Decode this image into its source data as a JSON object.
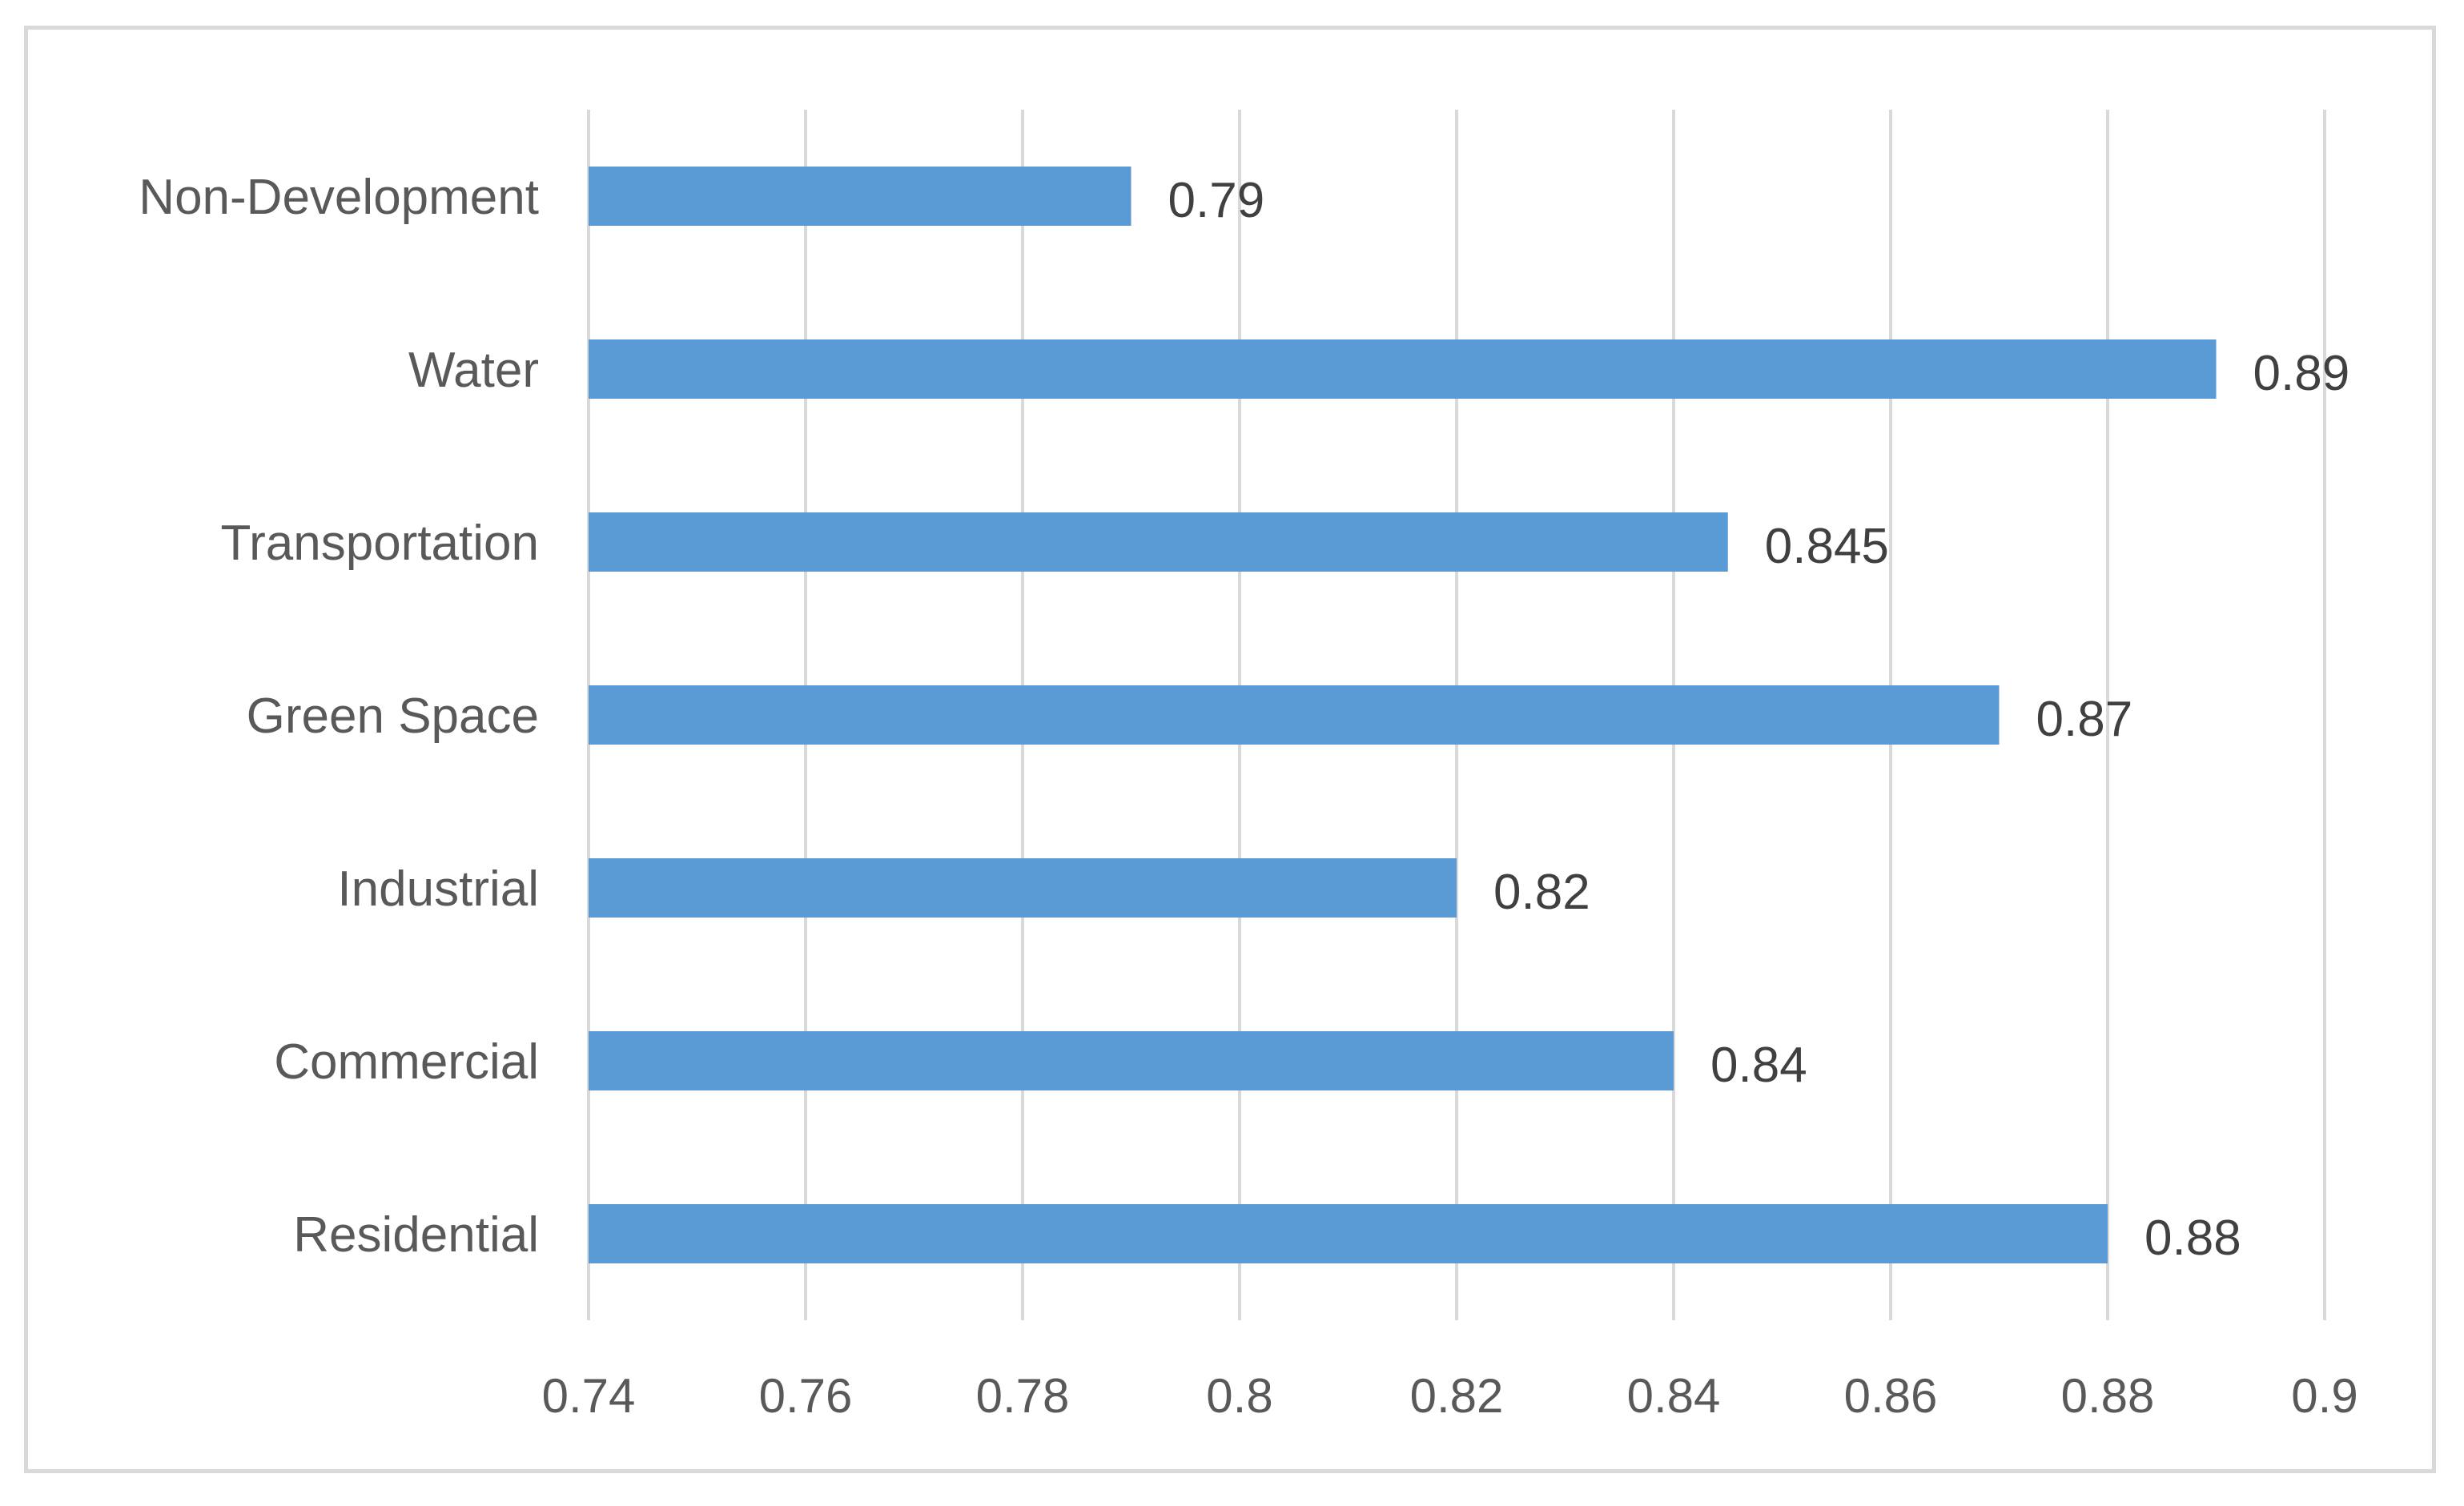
{
  "chart_data": {
    "type": "bar",
    "orientation": "horizontal",
    "categories": [
      "Non-Development",
      "Water",
      "Transportation",
      "Green Space",
      "Industrial",
      "Commercial",
      "Residential"
    ],
    "values": [
      0.79,
      0.89,
      0.845,
      0.87,
      0.82,
      0.84,
      0.88
    ],
    "data_labels": [
      "0.79",
      "0.89",
      "0.845",
      "0.87",
      "0.82",
      "0.84",
      "0.88"
    ],
    "xlim": [
      0.74,
      0.9
    ],
    "x_ticks": [
      0.74,
      0.76,
      0.78,
      0.8,
      0.82,
      0.84,
      0.86,
      0.88,
      0.9
    ],
    "x_tick_labels": [
      "0.74",
      "0.76",
      "0.78",
      "0.8",
      "0.82",
      "0.84",
      "0.86",
      "0.88",
      "0.9"
    ],
    "grid": "vertical",
    "title": "",
    "xlabel": "",
    "ylabel": "",
    "colors": {
      "bar": "#5b9bd5",
      "grid": "#d9d9d9",
      "text": "#595959",
      "frame": "#d9d9d9"
    }
  }
}
